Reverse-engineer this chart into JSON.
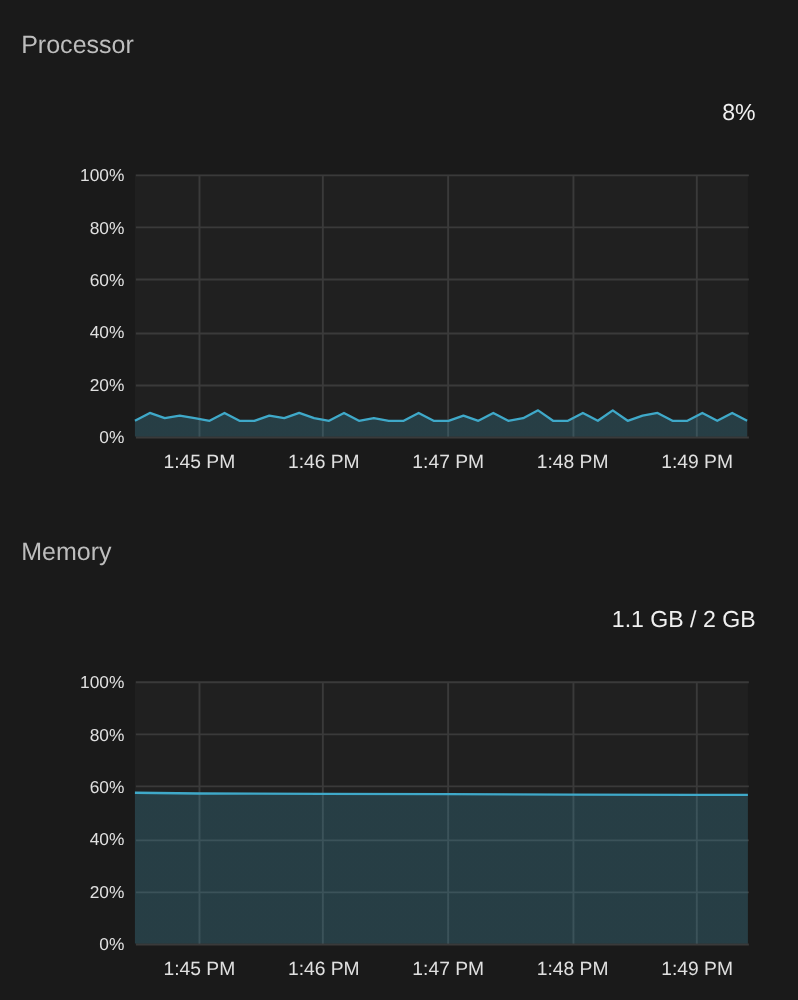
{
  "chart_data": [
    {
      "type": "area",
      "title": "Processor",
      "annotations": [
        "8%"
      ],
      "x": [
        13.7415,
        13.7435,
        13.7455,
        13.7475,
        13.7495,
        13.7515,
        13.7535,
        13.7555,
        13.7575,
        13.7595,
        13.7615,
        13.7635,
        13.7655,
        13.7675,
        13.7695,
        13.7715,
        13.7735,
        13.7755,
        13.7775,
        13.7795,
        13.7815,
        13.7835,
        13.7855,
        13.7875,
        13.7895,
        13.7915,
        13.7935,
        13.7955,
        13.7975,
        13.7995,
        13.8015,
        13.8035,
        13.8055,
        13.8075,
        13.8095,
        13.8115,
        13.8135,
        13.8155,
        13.8175,
        13.8195,
        13.8215,
        13.8235
      ],
      "series": [
        {
          "color": "#3fa9c9",
          "values": [
            6,
            9,
            7,
            8,
            7,
            6,
            9,
            6,
            6,
            8,
            7,
            9,
            7,
            6,
            9,
            6,
            7,
            6,
            6,
            9,
            6,
            6,
            8,
            6,
            9,
            6,
            7,
            10,
            6,
            6,
            9,
            6,
            10,
            6,
            8,
            9,
            6,
            6,
            9,
            6,
            9,
            6
          ]
        }
      ],
      "xlim": [
        13.7415,
        13.8236
      ],
      "xticks": [
        {
          "value": 13.75,
          "label": "1:45 PM"
        },
        {
          "value": 13.766667,
          "label": "1:46 PM"
        },
        {
          "value": 13.783333,
          "label": "1:47 PM"
        },
        {
          "value": 13.8,
          "label": "1:48 PM"
        },
        {
          "value": 13.816667,
          "label": "1:49 PM"
        }
      ],
      "ylim": [
        0,
        100
      ],
      "yticks": [
        {
          "value": 0,
          "label": "0%"
        },
        {
          "value": 20,
          "label": "20%"
        },
        {
          "value": 40,
          "label": "40%"
        },
        {
          "value": 60,
          "label": "60%"
        },
        {
          "value": 80,
          "label": "80%"
        },
        {
          "value": 100,
          "label": "100%"
        }
      ],
      "grid": true
    },
    {
      "type": "area",
      "title": "Memory",
      "annotations": [
        "1.1 GB / 2 GB"
      ],
      "x": [
        13.7415,
        13.75,
        13.7667,
        13.7833,
        13.8,
        13.8167,
        13.8236
      ],
      "series": [
        {
          "color": "#3fa9c9",
          "values": [
            57.5,
            57.2,
            57.1,
            57,
            56.8,
            56.7,
            56.7
          ]
        }
      ],
      "xlim": [
        13.7415,
        13.8236
      ],
      "xticks": [
        {
          "value": 13.75,
          "label": "1:45 PM"
        },
        {
          "value": 13.766667,
          "label": "1:46 PM"
        },
        {
          "value": 13.783333,
          "label": "1:47 PM"
        },
        {
          "value": 13.8,
          "label": "1:48 PM"
        },
        {
          "value": 13.816667,
          "label": "1:49 PM"
        }
      ],
      "ylim": [
        0,
        100
      ],
      "yticks": [
        {
          "value": 0,
          "label": "0%"
        },
        {
          "value": 20,
          "label": "20%"
        },
        {
          "value": 40,
          "label": "40%"
        },
        {
          "value": 60,
          "label": "60%"
        },
        {
          "value": 80,
          "label": "80%"
        },
        {
          "value": 100,
          "label": "100%"
        }
      ],
      "grid": true
    }
  ]
}
